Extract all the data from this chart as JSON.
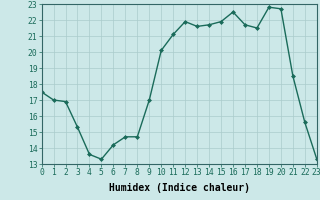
{
  "x": [
    0,
    1,
    2,
    3,
    4,
    5,
    6,
    7,
    8,
    9,
    10,
    11,
    12,
    13,
    14,
    15,
    16,
    17,
    18,
    19,
    20,
    21,
    22,
    23
  ],
  "y": [
    17.5,
    17.0,
    16.9,
    15.3,
    13.6,
    13.3,
    14.2,
    14.7,
    14.7,
    17.0,
    20.1,
    21.1,
    21.9,
    21.6,
    21.7,
    21.9,
    22.5,
    21.7,
    21.5,
    22.8,
    22.7,
    18.5,
    15.6,
    13.3
  ],
  "line_color": "#1a6b5a",
  "marker": "D",
  "marker_size": 2.0,
  "bg_color": "#cce8e8",
  "grid_color": "#aacccc",
  "xlim": [
    0,
    23
  ],
  "ylim": [
    13,
    23
  ],
  "yticks": [
    13,
    14,
    15,
    16,
    17,
    18,
    19,
    20,
    21,
    22,
    23
  ],
  "xticks": [
    0,
    1,
    2,
    3,
    4,
    5,
    6,
    7,
    8,
    9,
    10,
    11,
    12,
    13,
    14,
    15,
    16,
    17,
    18,
    19,
    20,
    21,
    22,
    23
  ],
  "xlabel": "Humidex (Indice chaleur)",
  "xlabel_fontsize": 7,
  "tick_fontsize": 5.8,
  "line_width": 1.0,
  "spine_color": "#336666"
}
